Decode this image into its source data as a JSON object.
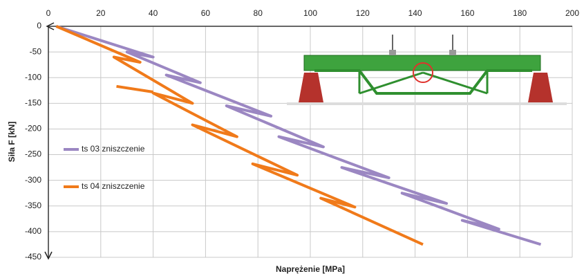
{
  "chart_data": {
    "type": "line",
    "x_label": "Naprężenie [MPa]",
    "y_label": "Siła F [kN]",
    "xlim": [
      0,
      200
    ],
    "xticks": [
      0,
      20,
      40,
      60,
      80,
      100,
      120,
      140,
      160,
      180,
      200
    ],
    "ylim": [
      -450,
      0
    ],
    "yticks": [
      0,
      -50,
      -100,
      -150,
      -200,
      -250,
      -300,
      -350,
      -400,
      -450
    ],
    "grid": true,
    "legend_position": "left",
    "series": [
      {
        "name": "ts 03 zniszczenie",
        "color": "#9b87c2",
        "x": [
          3,
          40,
          30,
          58,
          45,
          85,
          68,
          105,
          88,
          130,
          112,
          152,
          135,
          172,
          158,
          188
        ],
        "y": [
          0,
          -60,
          -50,
          -110,
          -95,
          -175,
          -155,
          -235,
          -215,
          -295,
          -275,
          -345,
          -325,
          -395,
          -378,
          -425
        ]
      },
      {
        "name": "ts 04 zniszczenie",
        "color": "#f07a1a",
        "x": [
          3,
          35,
          25,
          55,
          40,
          72,
          55,
          95,
          78,
          117,
          104,
          143,
          null,
          26,
          40
        ],
        "y": [
          0,
          -70,
          -60,
          -150,
          -130,
          -215,
          -192,
          -290,
          -268,
          -352,
          -335,
          -425,
          null,
          -117,
          -128
        ]
      }
    ]
  }
}
